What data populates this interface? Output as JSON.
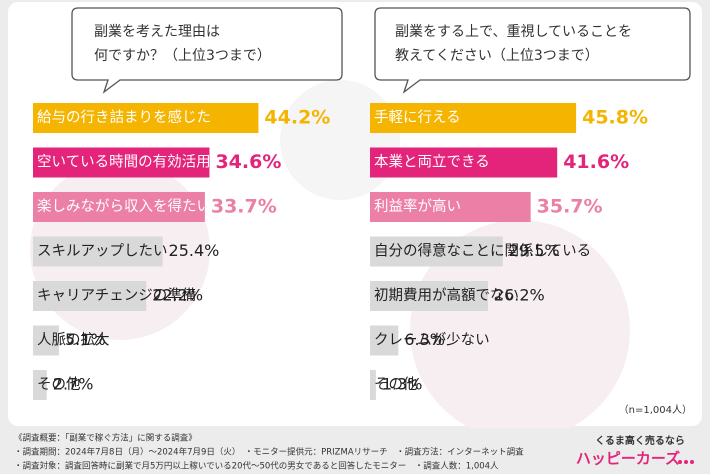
{
  "chart_data": [
    {
      "type": "bar",
      "orientation": "horizontal",
      "title": [
        "副業を考えた理由は",
        "何ですか？（上位3つまで）"
      ],
      "categories": [
        "給与の行き詰まりを感じた",
        "空いている時間の有効活用",
        "楽しみながら収入を得たい",
        "スキルアップしたい",
        "キャリアチェンジの準備",
        "人脈の拡大",
        "その他"
      ],
      "values": [
        44.2,
        34.6,
        33.7,
        25.4,
        22.2,
        5.1,
        2.7
      ],
      "value_labels": [
        "44.2%",
        "34.6%",
        "33.7%",
        "25.4%",
        "22.2%",
        "5.1%",
        "2.7%"
      ],
      "colors": [
        "#f5b400",
        "#e4237a",
        "#ec7fa5",
        "#d9d9d9",
        "#d9d9d9",
        "#d9d9d9",
        "#d9d9d9"
      ]
    },
    {
      "type": "bar",
      "orientation": "horizontal",
      "title": [
        "副業をする上で、重視していることを",
        "教えてください（上位3つまで）"
      ],
      "categories": [
        "手軽に行える",
        "本業と両立できる",
        "利益率が高い",
        "自分の得意なことに関係している",
        "初期費用が高額でない",
        "クレームが少ない",
        "その他"
      ],
      "values": [
        45.8,
        41.6,
        35.7,
        29.5,
        26.2,
        6.3,
        1.3
      ],
      "value_labels": [
        "45.8%",
        "41.6%",
        "35.7%",
        "29.5%",
        "26.2%",
        "6.3%",
        "1.3%"
      ],
      "colors": [
        "#f5b400",
        "#e4237a",
        "#ec7fa5",
        "#d9d9d9",
        "#d9d9d9",
        "#d9d9d9",
        "#d9d9d9"
      ]
    }
  ],
  "sample_size": "（n=1,004人）",
  "footer": [
    "《調査概要：「副業で稼ぐ方法」に関する調査》",
    "・調査期間：2024年7月8日（月）～2024年7月9日（火）　・モニター提供元：PRIZMAリサーチ　・調査方法：インターネット調査",
    "・調査対象：調査回答時に副業で月5万円以上稼いでいる20代～50代の男女であると回答したモニター　・調査人数：1,004人"
  ],
  "brand": {
    "tagline": "くるま高く売るなら",
    "name": "ハッピーカーズ"
  }
}
